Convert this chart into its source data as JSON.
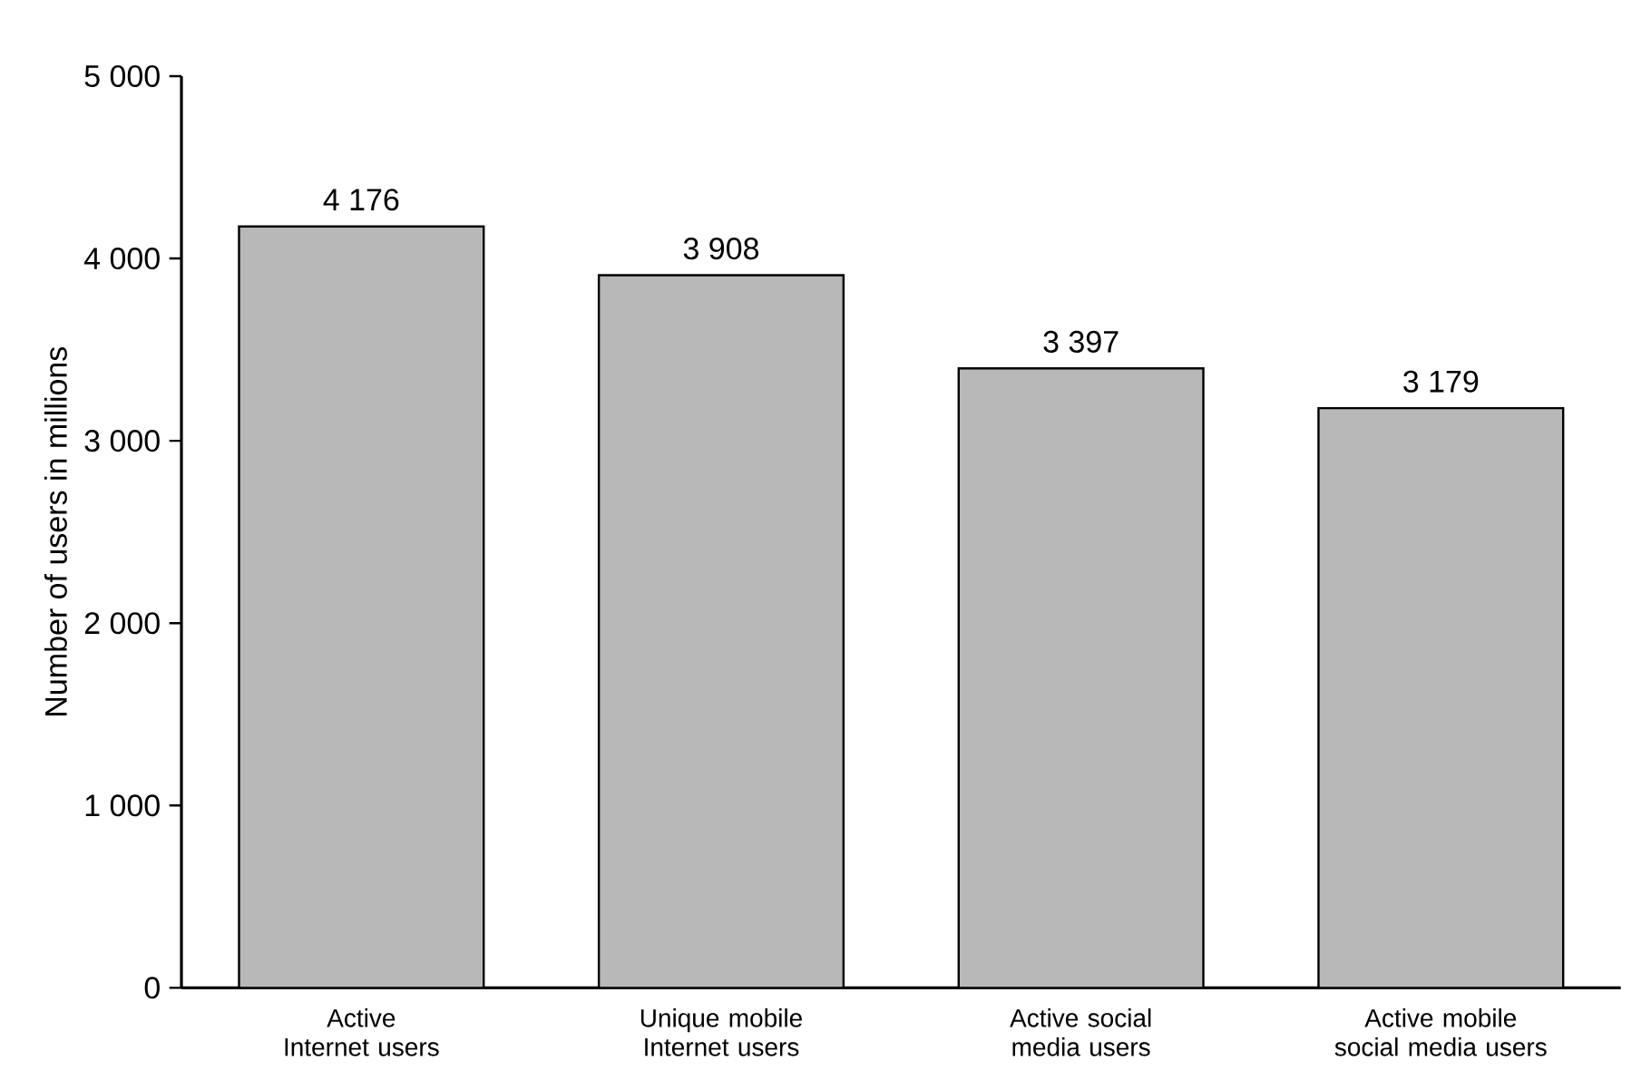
{
  "chart_data": {
    "type": "bar",
    "ylabel": "Number of users in millions",
    "categories": [
      "Active Internet users",
      "Unique mobile Internet users",
      "Active social media users",
      "Active mobile social media users"
    ],
    "values": [
      4176,
      3908,
      3397,
      3179
    ],
    "value_labels": [
      "4 176",
      "3 908",
      "3 397",
      "3 179"
    ],
    "color": "#b8b8b8",
    "ylim": [
      0,
      5000
    ],
    "yticks": [
      0,
      {
        "value": 1000,
        "label": "1 000"
      },
      {
        "value": 2000,
        "label": "2 000"
      },
      {
        "value": 3000,
        "label": "3 000"
      },
      {
        "value": 4000,
        "label": "4 000"
      },
      {
        "value": 5000,
        "label": "5 000"
      }
    ],
    "grid": false
  }
}
